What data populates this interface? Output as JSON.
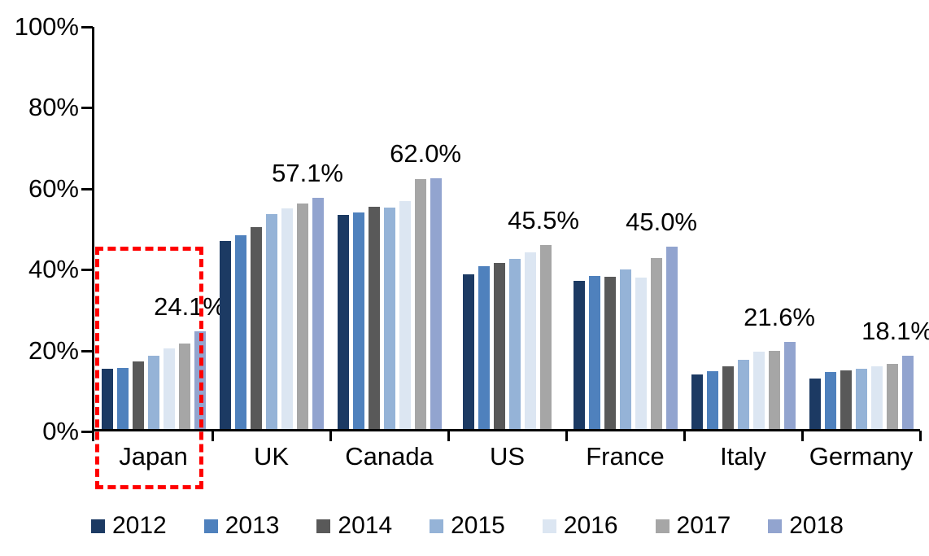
{
  "chart_data": {
    "type": "bar",
    "title": "",
    "xlabel": "",
    "ylabel": "",
    "ylim": [
      0,
      100
    ],
    "grid": false,
    "legend_position": "bottom",
    "y_ticks": [
      "100%",
      "80%",
      "60%",
      "40%",
      "20%",
      "0%"
    ],
    "categories": [
      "Japan",
      "UK",
      "Canada",
      "US",
      "France",
      "Italy",
      "Germany"
    ],
    "series": [
      {
        "name": "2012",
        "color": "#1C3A63",
        "values": [
          14.8,
          46.5,
          53.0,
          38.3,
          36.6,
          13.4,
          12.5
        ]
      },
      {
        "name": "2013",
        "color": "#4F81BD",
        "values": [
          15.0,
          47.9,
          53.5,
          40.2,
          37.8,
          14.2,
          14.0
        ]
      },
      {
        "name": "2014",
        "color": "#595959",
        "values": [
          16.7,
          50.0,
          55.0,
          41.0,
          37.7,
          15.5,
          14.4
        ]
      },
      {
        "name": "2015",
        "color": "#95B3D7",
        "values": [
          18.1,
          53.2,
          54.8,
          42.1,
          39.4,
          17.1,
          14.8
        ]
      },
      {
        "name": "2016",
        "color": "#DCE6F2",
        "values": [
          20.0,
          54.6,
          56.3,
          43.6,
          37.4,
          19.2,
          15.5
        ]
      },
      {
        "name": "2017",
        "color": "#A6A6A6",
        "values": [
          21.1,
          55.8,
          61.7,
          45.5,
          42.3,
          19.3,
          16.0
        ]
      },
      {
        "name": "2018",
        "color": "#92A4CF",
        "values": [
          24.1,
          57.1,
          62.0,
          null,
          45.0,
          21.6,
          18.1
        ]
      }
    ],
    "group_labels": [
      "24.1%",
      "57.1%",
      "62.0%",
      "45.5%",
      "45.0%",
      "21.6%",
      "18.1%"
    ],
    "legend": [
      "2012",
      "2013",
      "2014",
      "2015",
      "2016",
      "2017",
      "2018"
    ],
    "highlight": {
      "category": "Japan",
      "box_color": "#FF0000",
      "box_style": "dashed"
    },
    "axis_color": "#000000"
  }
}
